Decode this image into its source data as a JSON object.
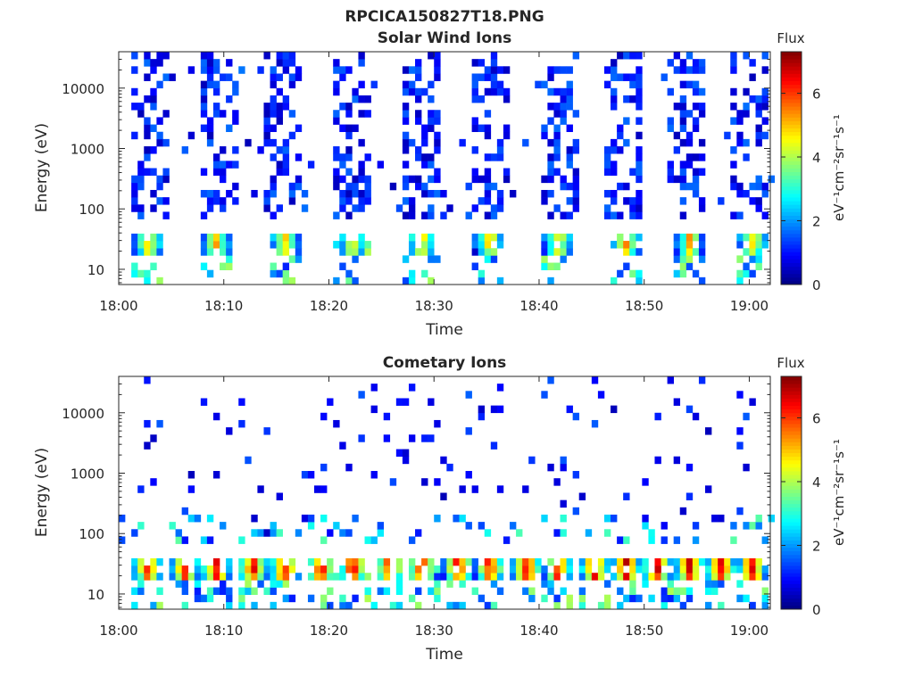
{
  "figure": {
    "title": "RPCICA150827T18.PNG"
  },
  "chart_data": [
    {
      "type": "heatmap",
      "title": "Solar Wind Ions",
      "xlabel": "Time",
      "ylabel": "Energy (eV)",
      "x_tick_labels": [
        "18:00",
        "18:10",
        "18:20",
        "18:30",
        "18:40",
        "18:50",
        "19:00"
      ],
      "x_range_minutes": [
        0,
        62
      ],
      "y_scale": "log",
      "y_range": [
        5.6,
        40000
      ],
      "y_tick_labels": [
        "10",
        "100",
        "1000",
        "10000"
      ],
      "colorbar": {
        "label": "Flux",
        "unit": "eV⁻¹cm⁻²sr⁻¹s⁻¹",
        "range": [
          0,
          7.3
        ],
        "tick_labels": [
          "0",
          "2",
          "4",
          "6"
        ]
      },
      "bursts_minutes": [
        2.5,
        9,
        15.5,
        22,
        28.5,
        35,
        41.5,
        48,
        54,
        60
      ],
      "peak_energy_eV": 25,
      "peak_flux": 5.2
    },
    {
      "type": "heatmap",
      "title": "Cometary Ions",
      "xlabel": "Time",
      "ylabel": "Energy (eV)",
      "x_tick_labels": [
        "18:00",
        "18:10",
        "18:20",
        "18:30",
        "18:40",
        "18:50",
        "19:00"
      ],
      "x_range_minutes": [
        0,
        62
      ],
      "y_scale": "log",
      "y_range": [
        5.6,
        40000
      ],
      "y_tick_labels": [
        "10",
        "100",
        "1000",
        "10000"
      ],
      "colorbar": {
        "label": "Flux",
        "unit": "eV⁻¹cm⁻²sr⁻¹s⁻¹",
        "range": [
          0,
          7.3
        ],
        "tick_labels": [
          "0",
          "2",
          "4",
          "6"
        ]
      },
      "bursts_minutes": [
        2.5,
        6,
        9,
        12.5,
        15.5,
        19,
        22,
        25.5,
        28.5,
        32,
        35,
        38.5,
        41.5,
        45,
        48,
        51,
        54,
        57,
        60
      ],
      "peak_energy_eV": 25,
      "peak_flux": 6.8
    }
  ]
}
